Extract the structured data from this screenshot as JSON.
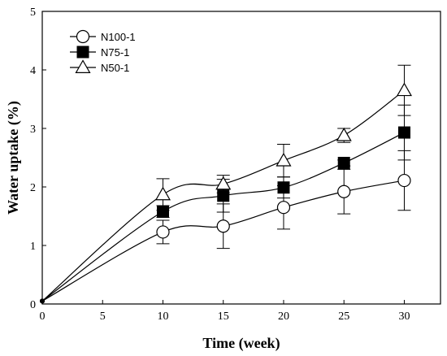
{
  "chart_data": {
    "type": "line",
    "title": "",
    "xlabel": "Time (week)",
    "ylabel": "Water uptake (%)",
    "xlim": [
      0,
      33
    ],
    "ylim": [
      0,
      5
    ],
    "xticks": [
      0,
      5,
      10,
      15,
      20,
      25,
      30
    ],
    "yticks": [
      0,
      1,
      2,
      3,
      4,
      5
    ],
    "grid": false,
    "legend_position": "top-left",
    "series": [
      {
        "name": "N100-1",
        "marker": "open-circle",
        "x": [
          0,
          10,
          15,
          20,
          25,
          30
        ],
        "y": [
          0.05,
          1.23,
          1.33,
          1.65,
          1.92,
          2.11
        ],
        "error": [
          0,
          0.2,
          0.38,
          0.37,
          0.38,
          0.51
        ]
      },
      {
        "name": "N75-1",
        "marker": "filled-square",
        "x": [
          0,
          10,
          15,
          20,
          25,
          30
        ],
        "y": [
          0.05,
          1.58,
          1.85,
          1.99,
          2.41,
          2.93
        ],
        "error": [
          0,
          0.1,
          0.28,
          0.18,
          0.05,
          0.47
        ]
      },
      {
        "name": "N50-1",
        "marker": "open-triangle",
        "x": [
          0,
          10,
          15,
          20,
          25,
          30
        ],
        "y": [
          0.05,
          1.87,
          2.05,
          2.45,
          2.88,
          3.65
        ],
        "error": [
          0,
          0.27,
          0.15,
          0.28,
          0.12,
          0.43
        ]
      }
    ]
  }
}
